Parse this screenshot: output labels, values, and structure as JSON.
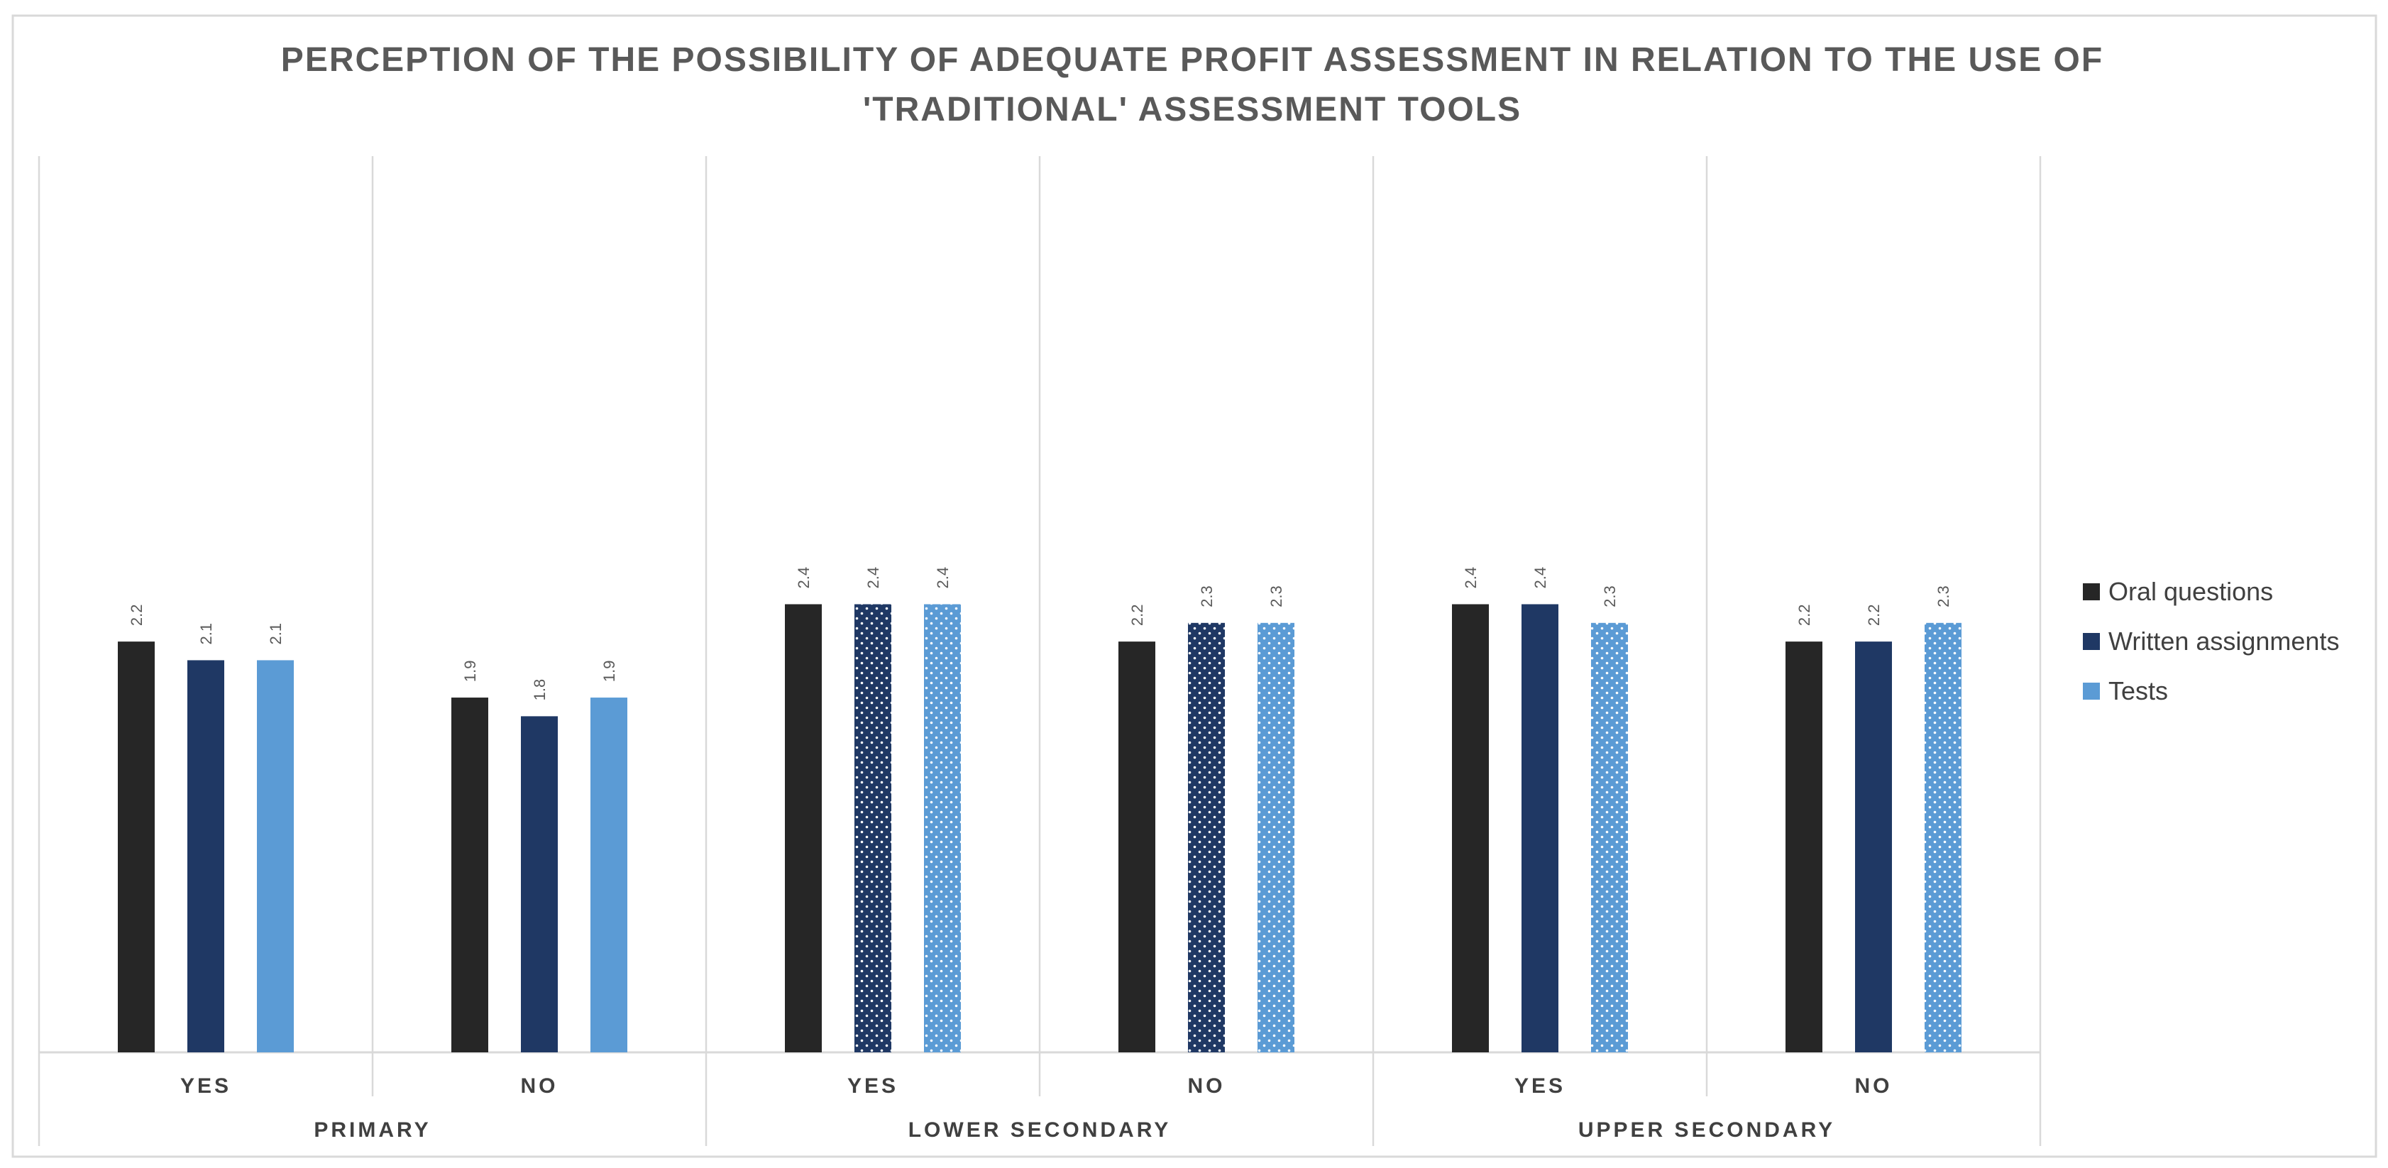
{
  "chart_data": {
    "type": "bar",
    "title_lines": [
      "PERCEPTION OF THE POSSIBILITY OF ADEQUATE PROFIT ASSESSMENT IN RELATION TO THE USE OF",
      "'TRADITIONAL'  ASSESSMENT TOOLS"
    ],
    "groups": [
      {
        "name": "PRIMARY",
        "categories": [
          "YES",
          "NO"
        ]
      },
      {
        "name": "LOWER SECONDARY",
        "categories": [
          "YES",
          "NO"
        ]
      },
      {
        "name": "UPPER SECONDARY",
        "categories": [
          "YES",
          "NO"
        ]
      }
    ],
    "series": [
      {
        "name": "Oral questions",
        "color": "#262626",
        "values": [
          2.2,
          1.9,
          2.4,
          2.2,
          2.4,
          2.2
        ],
        "labels": [
          "2.2",
          "1.9",
          "2.4",
          "2.2",
          "2.4",
          "2.2"
        ],
        "dotted": [
          false,
          false,
          false,
          false,
          false,
          false
        ]
      },
      {
        "name": "Written assignments",
        "color": "#1f3864",
        "values": [
          2.1,
          1.8,
          2.4,
          2.3,
          2.4,
          2.2
        ],
        "labels": [
          "2.1",
          "1.8",
          "2.4",
          "2.3",
          "2.4",
          "2.2"
        ],
        "dotted": [
          false,
          false,
          true,
          true,
          false,
          false
        ]
      },
      {
        "name": "Tests",
        "color": "#5b9bd5",
        "values": [
          2.1,
          1.9,
          2.4,
          2.3,
          2.3,
          2.3
        ],
        "labels": [
          "2.1",
          "1.9",
          "2.4",
          "2.3",
          "2.3",
          "2.3"
        ],
        "dotted": [
          false,
          false,
          true,
          true,
          true,
          true
        ]
      }
    ],
    "ylim": [
      0,
      4.8
    ],
    "grid": false,
    "legend_position": "right",
    "xlabel": "",
    "ylabel": ""
  }
}
